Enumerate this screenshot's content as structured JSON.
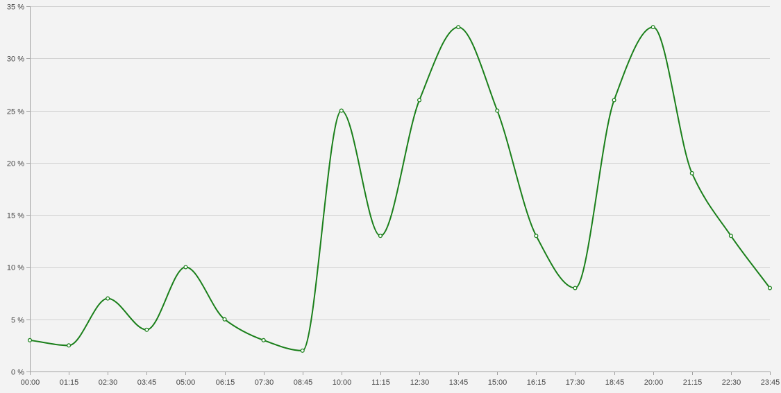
{
  "chart_data": {
    "type": "line",
    "x": [
      "00:00",
      "01:15",
      "02:30",
      "03:45",
      "05:00",
      "06:15",
      "07:30",
      "08:45",
      "10:00",
      "11:15",
      "12:30",
      "13:45",
      "15:00",
      "16:15",
      "17:30",
      "18:45",
      "20:00",
      "21:15",
      "22:30",
      "23:45"
    ],
    "series": [
      {
        "values": [
          3,
          2.5,
          7,
          4,
          10,
          5,
          3,
          2,
          25,
          13,
          26,
          33,
          25,
          13,
          8,
          26,
          33,
          19,
          13,
          8
        ],
        "color": "#1a7f1a"
      }
    ],
    "y_ticks": [
      0,
      5,
      10,
      15,
      20,
      25,
      30,
      35
    ],
    "y_tick_suffix": " %",
    "ylim": [
      0,
      35
    ],
    "grid": "horizontal",
    "legend": "none",
    "colors": {
      "background": "#f3f3f3",
      "grid": "#d0d0d0",
      "axis": "#a0a0a0",
      "line": "#1a7f1a",
      "marker_fill": "#ffffff"
    }
  }
}
